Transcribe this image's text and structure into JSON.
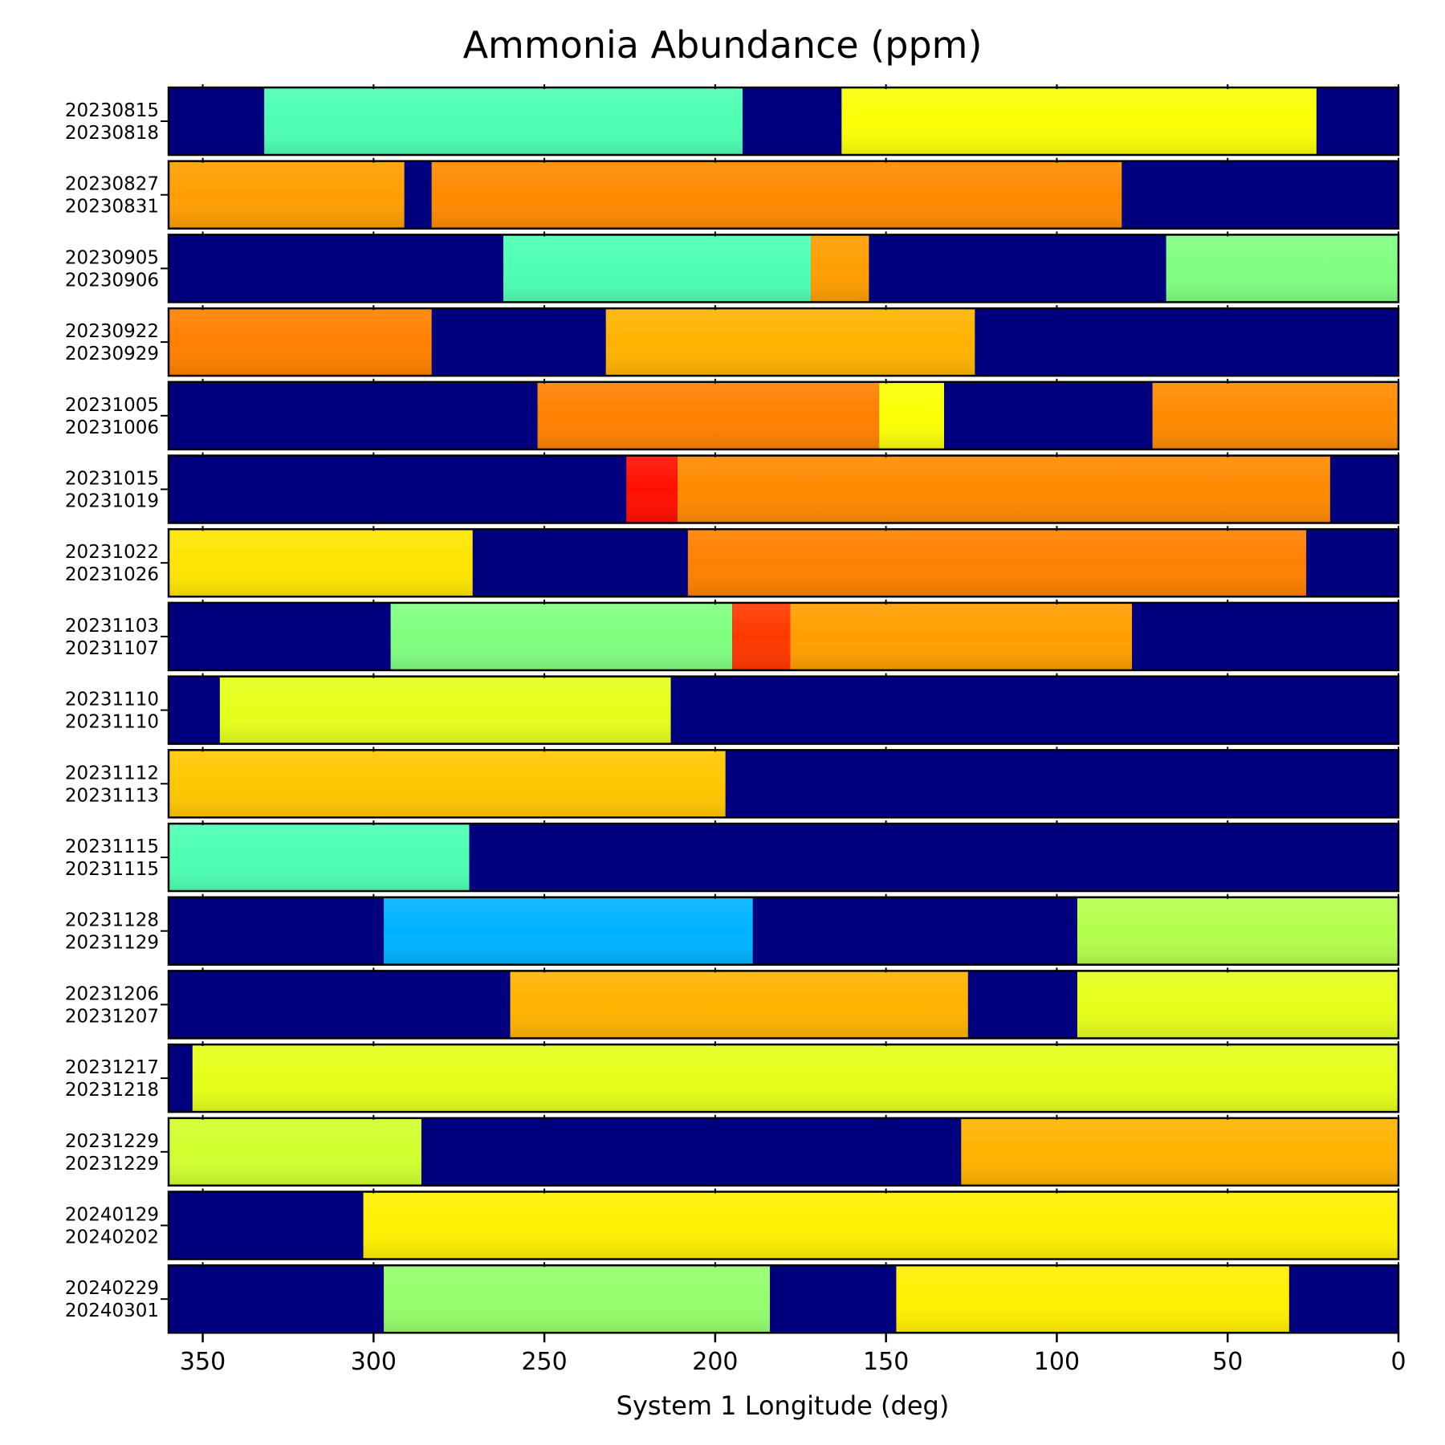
{
  "chart_data": {
    "type": "heatmap",
    "title": "Ammonia Abundance (ppm)",
    "xlabel": "System 1 Longitude (deg)",
    "ylabel": "",
    "xlim": [
      360,
      0
    ],
    "x_ticks": [
      350,
      300,
      250,
      200,
      150,
      100,
      50,
      0
    ],
    "colormap": "jet",
    "background_color": "#00007f",
    "panels": [
      {
        "date_start": "20230815",
        "date_end": "20230818",
        "coverage": [
          [
            332,
            192,
            0.45
          ],
          [
            163,
            24,
            0.62
          ]
        ]
      },
      {
        "date_start": "20230827",
        "date_end": "20230831",
        "coverage": [
          [
            360,
            291,
            0.72
          ],
          [
            283,
            81,
            0.74
          ]
        ]
      },
      {
        "date_start": "20230905",
        "date_end": "20230906",
        "coverage": [
          [
            262,
            172,
            0.45
          ],
          [
            172,
            155,
            0.72
          ],
          [
            68,
            0,
            0.5
          ]
        ]
      },
      {
        "date_start": "20230922",
        "date_end": "20230929",
        "coverage": [
          [
            360,
            283,
            0.75
          ],
          [
            232,
            124,
            0.7
          ]
        ]
      },
      {
        "date_start": "20231005",
        "date_end": "20231006",
        "coverage": [
          [
            252,
            152,
            0.75
          ],
          [
            152,
            133,
            0.62
          ],
          [
            72,
            0,
            0.74
          ]
        ]
      },
      {
        "date_start": "20231015",
        "date_end": "20231019",
        "coverage": [
          [
            226,
            211,
            0.86
          ],
          [
            211,
            20,
            0.74
          ]
        ]
      },
      {
        "date_start": "20231022",
        "date_end": "20231026",
        "coverage": [
          [
            360,
            271,
            0.65
          ],
          [
            208,
            27,
            0.75
          ]
        ]
      },
      {
        "date_start": "20231103",
        "date_end": "20231107",
        "coverage": [
          [
            295,
            195,
            0.5
          ],
          [
            195,
            178,
            0.82
          ],
          [
            178,
            78,
            0.72
          ]
        ]
      },
      {
        "date_start": "20231110",
        "date_end": "20231110",
        "coverage": [
          [
            345,
            213,
            0.6
          ]
        ]
      },
      {
        "date_start": "20231112",
        "date_end": "20231113",
        "coverage": [
          [
            360,
            197,
            0.68
          ]
        ]
      },
      {
        "date_start": "20231115",
        "date_end": "20231115",
        "coverage": [
          [
            360,
            272,
            0.45
          ]
        ]
      },
      {
        "date_start": "20231128",
        "date_end": "20231129",
        "coverage": [
          [
            297,
            189,
            0.3
          ],
          [
            94,
            0,
            0.55
          ]
        ]
      },
      {
        "date_start": "20231206",
        "date_end": "20231207",
        "coverage": [
          [
            260,
            126,
            0.7
          ],
          [
            94,
            0,
            0.6
          ]
        ]
      },
      {
        "date_start": "20231217",
        "date_end": "20231218",
        "coverage": [
          [
            353,
            0,
            0.6
          ]
        ]
      },
      {
        "date_start": "20231229",
        "date_end": "20231229",
        "coverage": [
          [
            360,
            286,
            0.58
          ],
          [
            128,
            0,
            0.7
          ]
        ]
      },
      {
        "date_start": "20240129",
        "date_end": "20240202",
        "coverage": [
          [
            303,
            0,
            0.64
          ]
        ]
      },
      {
        "date_start": "20240229",
        "date_end": "20240301",
        "coverage": [
          [
            297,
            184,
            0.52
          ],
          [
            147,
            32,
            0.64
          ]
        ]
      }
    ]
  }
}
